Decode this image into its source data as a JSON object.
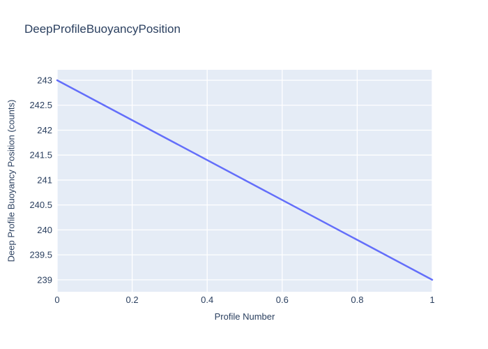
{
  "title": "DeepProfileBuoyancyPosition",
  "colors": {
    "text": "#2a3f5f",
    "line": "#636efa",
    "plot_bg": "#e5ecf6",
    "grid": "#ffffff",
    "page_bg": "#ffffff"
  },
  "chart_data": {
    "type": "line",
    "title": "DeepProfileBuoyancyPosition",
    "xlabel": "Profile Number",
    "ylabel": "Deep Profile Buoyancy Position (counts)",
    "x": [
      0,
      1
    ],
    "y": [
      243,
      239
    ],
    "series": [
      {
        "name": "DeepProfileBuoyancyPosition",
        "x": [
          0,
          1
        ],
        "values": [
          243,
          239
        ]
      }
    ],
    "x_ticks": [
      0,
      0.2,
      0.4,
      0.6,
      0.8,
      1
    ],
    "x_tick_labels": [
      "0",
      "0.2",
      "0.4",
      "0.6",
      "0.8",
      "1"
    ],
    "y_ticks": [
      239,
      239.5,
      240,
      240.5,
      241,
      241.5,
      242,
      242.5,
      243
    ],
    "y_tick_labels": [
      "239",
      "239.5",
      "240",
      "240.5",
      "241",
      "241.5",
      "242",
      "242.5",
      "243"
    ],
    "xlim": [
      0,
      1
    ],
    "ylim": [
      238.76,
      243.21
    ],
    "grid": true,
    "legend_visible": false
  }
}
